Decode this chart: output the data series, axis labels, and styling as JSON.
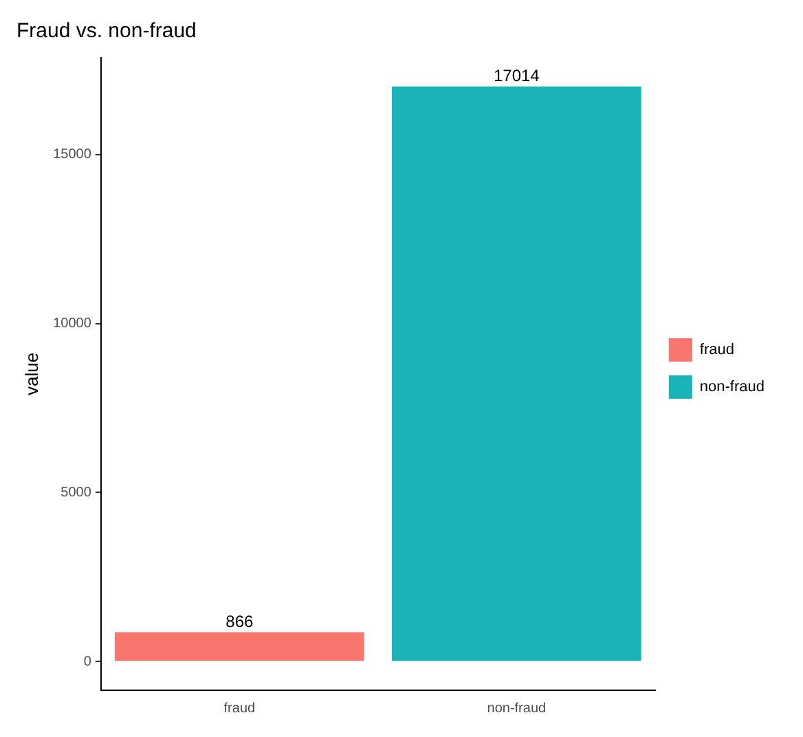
{
  "chart_data": {
    "type": "bar",
    "title": "Fraud vs. non-fraud",
    "ylabel": "value",
    "categories": [
      "fraud",
      "non-fraud"
    ],
    "series": [
      {
        "name": "fraud",
        "color": "#f8766d",
        "values": [
          866,
          null
        ]
      },
      {
        "name": "non-fraud",
        "color": "#1ab3b8",
        "values": [
          null,
          17014
        ]
      }
    ],
    "ylim": [
      -851,
      17865
    ],
    "yticks": [
      0,
      5000,
      10000,
      15000
    ],
    "grid": false,
    "legend": "right",
    "data_labels": true
  }
}
